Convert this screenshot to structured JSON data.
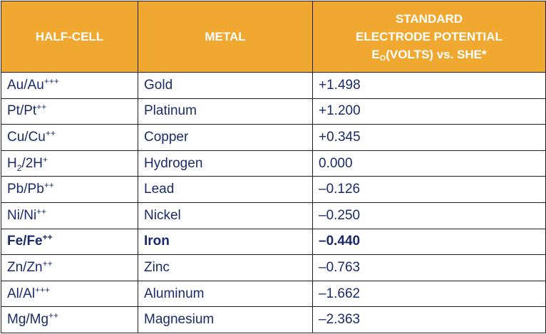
{
  "header": {
    "half_cell": "HALF-CELL",
    "metal": "METAL",
    "potential_line1": "STANDARD",
    "potential_line2": "ELECTRODE POTENTIAL",
    "potential_e": "E",
    "potential_e_sub": "O",
    "potential_line3_rest": "(VOLTS) vs. SHE*"
  },
  "rows": [
    {
      "ion_base": "Au/Au",
      "ion_sup": "+++",
      "h_pre": "",
      "h_sub": "",
      "h_mid": "",
      "metal": "Gold",
      "potential": "+1.498",
      "bold": false
    },
    {
      "ion_base": "Pt/Pt",
      "ion_sup": "++",
      "h_pre": "",
      "h_sub": "",
      "h_mid": "",
      "metal": "Platinum",
      "potential": "+1.200",
      "bold": false
    },
    {
      "ion_base": "Cu/Cu",
      "ion_sup": "++",
      "h_pre": "",
      "h_sub": "",
      "h_mid": "",
      "metal": "Copper",
      "potential": "+0.345",
      "bold": false
    },
    {
      "ion_base": "",
      "ion_sup": "+",
      "h_pre": "H",
      "h_sub": "2",
      "h_mid": "/2H",
      "metal": "Hydrogen",
      "potential": "0.000",
      "bold": false
    },
    {
      "ion_base": "Pb/Pb",
      "ion_sup": "++",
      "h_pre": "",
      "h_sub": "",
      "h_mid": "",
      "metal": "Lead",
      "potential": "–0.126",
      "bold": false
    },
    {
      "ion_base": "Ni/Ni",
      "ion_sup": "++",
      "h_pre": "",
      "h_sub": "",
      "h_mid": "",
      "metal": "Nickel",
      "potential": "–0.250",
      "bold": false
    },
    {
      "ion_base": "Fe/Fe",
      "ion_sup": "++",
      "h_pre": "",
      "h_sub": "",
      "h_mid": "",
      "metal": "Iron",
      "potential": "–0.440",
      "bold": true
    },
    {
      "ion_base": "Zn/Zn",
      "ion_sup": "++",
      "h_pre": "",
      "h_sub": "",
      "h_mid": "",
      "metal": "Zinc",
      "potential": "–0.763",
      "bold": false
    },
    {
      "ion_base": "Al/Al",
      "ion_sup": "+++",
      "h_pre": "",
      "h_sub": "",
      "h_mid": "",
      "metal": "Aluminum",
      "potential": "–1.662",
      "bold": false
    },
    {
      "ion_base": "Mg/Mg",
      "ion_sup": "++",
      "h_pre": "",
      "h_sub": "",
      "h_mid": "",
      "metal": "Magnesium",
      "potential": "–2.363",
      "bold": false
    }
  ],
  "colors": {
    "header_bg": "#f0a830",
    "header_text": "#ffffff",
    "body_text": "#1b2a6b",
    "border": "#1f1f1f"
  }
}
